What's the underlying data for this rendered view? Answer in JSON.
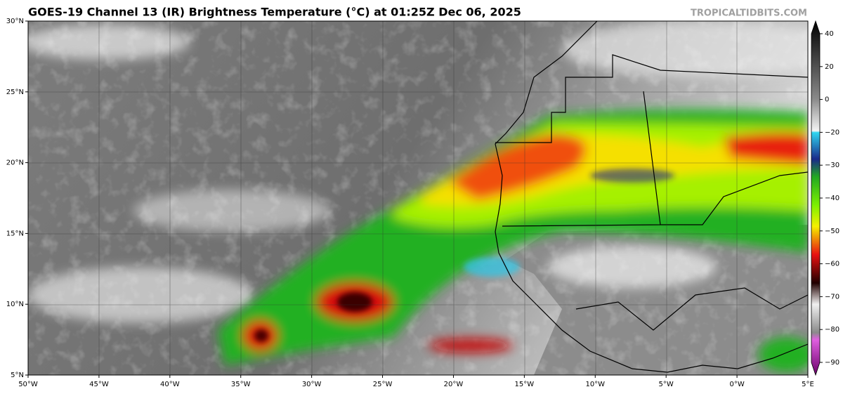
{
  "header": {
    "title": "GOES-19 Channel 13 (IR) Brightness Temperature (°C) at 01:25Z Dec 06, 2025",
    "credit": "TROPICALTIDBITS.COM"
  },
  "map": {
    "lat_labels": [
      "30°N",
      "25°N",
      "20°N",
      "15°N",
      "10°N",
      "5°N"
    ],
    "lon_labels": [
      "50°W",
      "45°W",
      "40°W",
      "35°W",
      "30°W",
      "25°W",
      "20°W",
      "15°W",
      "10°W",
      "5°W",
      "0°W",
      "5°E"
    ]
  },
  "colorbar": {
    "ticks": [
      "40",
      "20",
      "0",
      "−20",
      "−30",
      "−40",
      "−50",
      "−60",
      "−70",
      "−80",
      "−90"
    ]
  }
}
